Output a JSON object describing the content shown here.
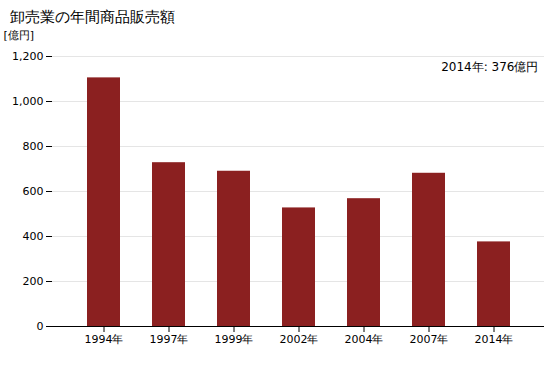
{
  "chart_data": {
    "type": "bar",
    "title": "卸売業の年間商品販売額",
    "ylabel": "[億円]",
    "annotation": "2014年: 376億円",
    "categories": [
      "1994年",
      "1997年",
      "1999年",
      "2002年",
      "2004年",
      "2007年",
      "2014年"
    ],
    "values": [
      1105,
      728,
      690,
      527,
      568,
      681,
      376
    ],
    "color": "#8B2020",
    "ylim": [
      0,
      1200
    ],
    "yticks": [
      0,
      200,
      400,
      600,
      800,
      {
        "value": 1000,
        "label": "1,000"
      },
      {
        "value": 1200,
        "label": "1,200"
      }
    ],
    "grid": true
  }
}
